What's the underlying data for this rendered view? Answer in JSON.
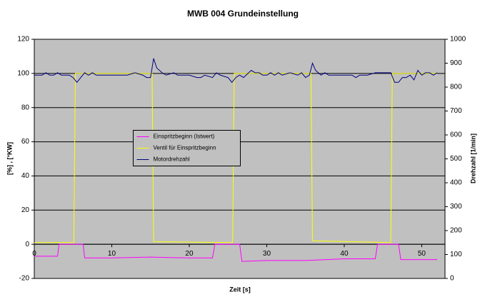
{
  "chart_data": {
    "type": "line",
    "title": "MWB 004 Grundeinstellung",
    "x_label": "Zeit   [s]",
    "y_label": "[%] , [°KW]",
    "y2_label": "Drehzahl   [1/min]",
    "xlim": [
      0,
      53
    ],
    "xticks": [
      0,
      10,
      20,
      30,
      40,
      50
    ],
    "ylim": [
      -20,
      120
    ],
    "yticks": [
      -20,
      0,
      20,
      40,
      60,
      80,
      100,
      120
    ],
    "y2lim": [
      0,
      1000
    ],
    "y2ticks": [
      0,
      100,
      200,
      300,
      400,
      500,
      600,
      700,
      800,
      900,
      1000
    ],
    "grid": true,
    "legend": "center",
    "series": [
      {
        "name": "Einspritzbeginn (Istwert)",
        "color": "#ff00ff",
        "x": [
          0,
          3,
          3.2,
          6.3,
          6.5,
          10,
          15,
          20,
          23,
          23.3,
          26.5,
          26.8,
          30,
          35,
          40,
          44,
          44.3,
          47,
          47.3,
          50,
          52
        ],
        "values": [
          -7,
          -7,
          0,
          0,
          -8,
          -8,
          -7.5,
          -8,
          -8,
          0,
          0,
          -10,
          -9.5,
          -9.5,
          -8.5,
          -8.5,
          0,
          0,
          -9,
          -9,
          -9
        ]
      },
      {
        "name": "Ventil für Einspritzbeginn",
        "color": "#ffff00",
        "x": [
          0,
          5.1,
          5.3,
          15.2,
          15.4,
          25.6,
          25.8,
          35.7,
          35.9,
          46,
          46.2,
          52
        ],
        "values": [
          1,
          1,
          100,
          100,
          1.5,
          1,
          100,
          100,
          2,
          1,
          100,
          100
        ]
      },
      {
        "name": "Motordrehzahl",
        "color": "#000080",
        "axis": "y2",
        "x": [
          0,
          1,
          1.5,
          2,
          2.5,
          3,
          3.5,
          4,
          4.5,
          5,
          5.5,
          6,
          6.5,
          7,
          7.5,
          8,
          9,
          10,
          11,
          12,
          13,
          14,
          14.5,
          15,
          15.4,
          15.8,
          16.5,
          17,
          18,
          18.5,
          19,
          20,
          21,
          21.5,
          22,
          23,
          23.5,
          24,
          25,
          25.5,
          26,
          26.5,
          27,
          28,
          28.5,
          29,
          29.5,
          30,
          30.5,
          31,
          31.5,
          32,
          33,
          34,
          34.5,
          35,
          35.5,
          35.9,
          36.3,
          37,
          37.5,
          38,
          39,
          40,
          41,
          41.5,
          42,
          43,
          44,
          45,
          46,
          46.5,
          47,
          47.5,
          48,
          48.5,
          49,
          49.5,
          50,
          50.5,
          51,
          51.5,
          52
        ],
        "values": [
          850,
          850,
          860,
          850,
          850,
          860,
          850,
          850,
          850,
          840,
          820,
          840,
          860,
          850,
          860,
          850,
          850,
          850,
          850,
          850,
          860,
          850,
          840,
          840,
          920,
          880,
          860,
          850,
          860,
          850,
          850,
          850,
          840,
          840,
          850,
          840,
          860,
          850,
          840,
          820,
          840,
          850,
          840,
          870,
          860,
          860,
          850,
          850,
          860,
          850,
          860,
          850,
          860,
          850,
          860,
          840,
          850,
          900,
          870,
          850,
          860,
          850,
          850,
          850,
          850,
          840,
          850,
          850,
          860,
          860,
          860,
          820,
          820,
          840,
          840,
          850,
          830,
          870,
          850,
          860,
          860,
          850,
          860
        ]
      }
    ]
  }
}
